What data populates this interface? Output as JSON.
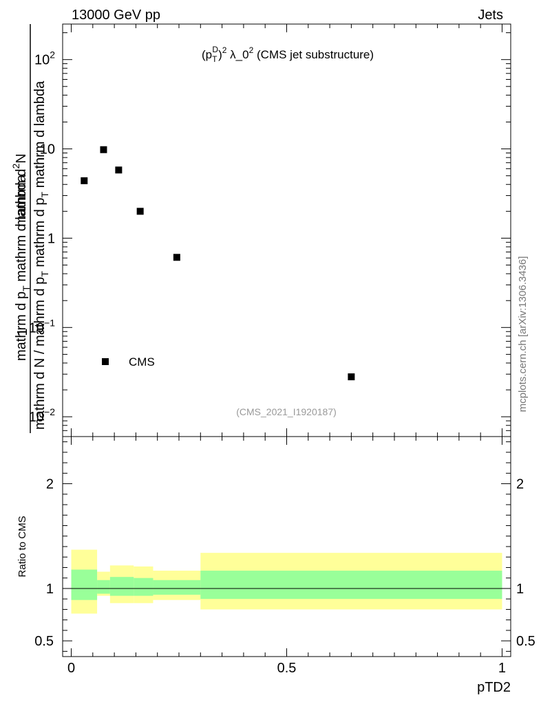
{
  "header": {
    "energy_label": "13000 GeV pp",
    "process_label": "Jets"
  },
  "side_label": "mcplots.cern.ch [arXiv:1306.3436]",
  "chart_data": [
    {
      "type": "scatter",
      "panel": "main",
      "title": "(p_T^D)^2 λ_0^2 (CMS jet substructure)",
      "analysis_tag": "(CMS_2021_I1920187)",
      "ylabel": {
        "numerator": "1 / mathrm d N / mathrm d p_T mathrm d p_T mathrm d lambda",
        "line1": "mathrm d",
        "line1_sup": "2",
        "line1_end": "N",
        "line2a": "mathrm d p",
        "line2a_sub": "T",
        "line2b": " mathrm d lambda",
        "denom1": "1",
        "denom2a": "mathrm d N / mathrm d p",
        "denom2a_sub": "T",
        "denom2b": " mathrm d p",
        "denom2b_sub": "T",
        "denom2c": " mathrm d lambda"
      },
      "y_scale": "log",
      "ylim": [
        0.006,
        250
      ],
      "xlim": [
        -0.02,
        1.02
      ],
      "y_tick_labels": [
        {
          "value": 100,
          "base": "10",
          "exp": "2"
        },
        {
          "value": 10,
          "base": "10",
          "exp": ""
        },
        {
          "value": 1,
          "base": "1",
          "exp": ""
        },
        {
          "value": 0.1,
          "base": "10",
          "exp": "−1"
        },
        {
          "value": 0.01,
          "base": "10",
          "exp": "−2"
        }
      ],
      "series": [
        {
          "name": "CMS",
          "color": "#000000",
          "marker": "square",
          "points": [
            {
              "x": 0.03,
              "y": 4.4
            },
            {
              "x": 0.075,
              "y": 9.8
            },
            {
              "x": 0.11,
              "y": 5.8
            },
            {
              "x": 0.16,
              "y": 2.0
            },
            {
              "x": 0.245,
              "y": 0.61
            },
            {
              "x": 0.65,
              "y": 0.028
            }
          ]
        }
      ],
      "legend": {
        "position": "bottom-left",
        "label": "CMS"
      }
    },
    {
      "type": "area",
      "panel": "ratio",
      "ylabel": "Ratio to CMS",
      "xlabel": "pTD2",
      "xlim": [
        -0.02,
        1.02
      ],
      "ylim": [
        0.35,
        2.45
      ],
      "x_tick_labels": [
        "0",
        "0.5",
        "1"
      ],
      "y_tick_labels": [
        "0.5",
        "1",
        "2"
      ],
      "reference_line": 1.0,
      "bands": {
        "x_edges": [
          0.0,
          0.06,
          0.09,
          0.145,
          0.19,
          0.3,
          1.0
        ],
        "outer": {
          "color": "#ffff99",
          "lower": [
            0.76,
            0.93,
            0.86,
            0.86,
            0.89,
            0.8
          ],
          "upper": [
            1.37,
            1.16,
            1.22,
            1.21,
            1.17,
            1.34
          ]
        },
        "inner": {
          "color": "#99ff99",
          "lower": [
            0.89,
            0.95,
            0.93,
            0.93,
            0.94,
            0.9
          ],
          "upper": [
            1.18,
            1.08,
            1.11,
            1.1,
            1.08,
            1.17
          ]
        }
      }
    }
  ]
}
